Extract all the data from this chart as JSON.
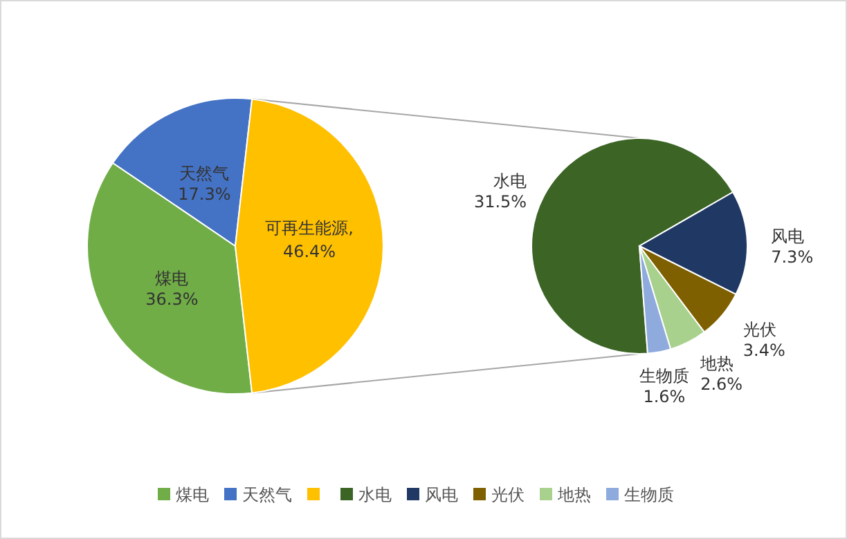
{
  "chart_data": [
    {
      "type": "pie",
      "categories": [
        "煤电",
        "天然气",
        null
      ],
      "values": [
        36.3,
        17.3,
        46.4
      ],
      "colors": [
        "#70ad47",
        "#4472c4",
        "#ffc000"
      ],
      "value_labels": [
        "36.3%",
        "17.3%",
        "46.4%"
      ],
      "legend": "bottom",
      "annotations": [
        "可再生能源,"
      ]
    },
    {
      "type": "pie",
      "categories": [
        "水电",
        "风电",
        "光伏",
        "地热",
        "生物质"
      ],
      "values": [
        31.5,
        7.3,
        3.4,
        2.6,
        1.6
      ],
      "colors": [
        "#3b6425",
        "#203864",
        "#7f6000",
        "#a9d18e",
        "#8faadc"
      ],
      "value_labels": [
        "31.5%",
        "7.3%",
        "3.4%",
        "2.6%",
        "1.6%"
      ],
      "legend": "bottom"
    }
  ]
}
